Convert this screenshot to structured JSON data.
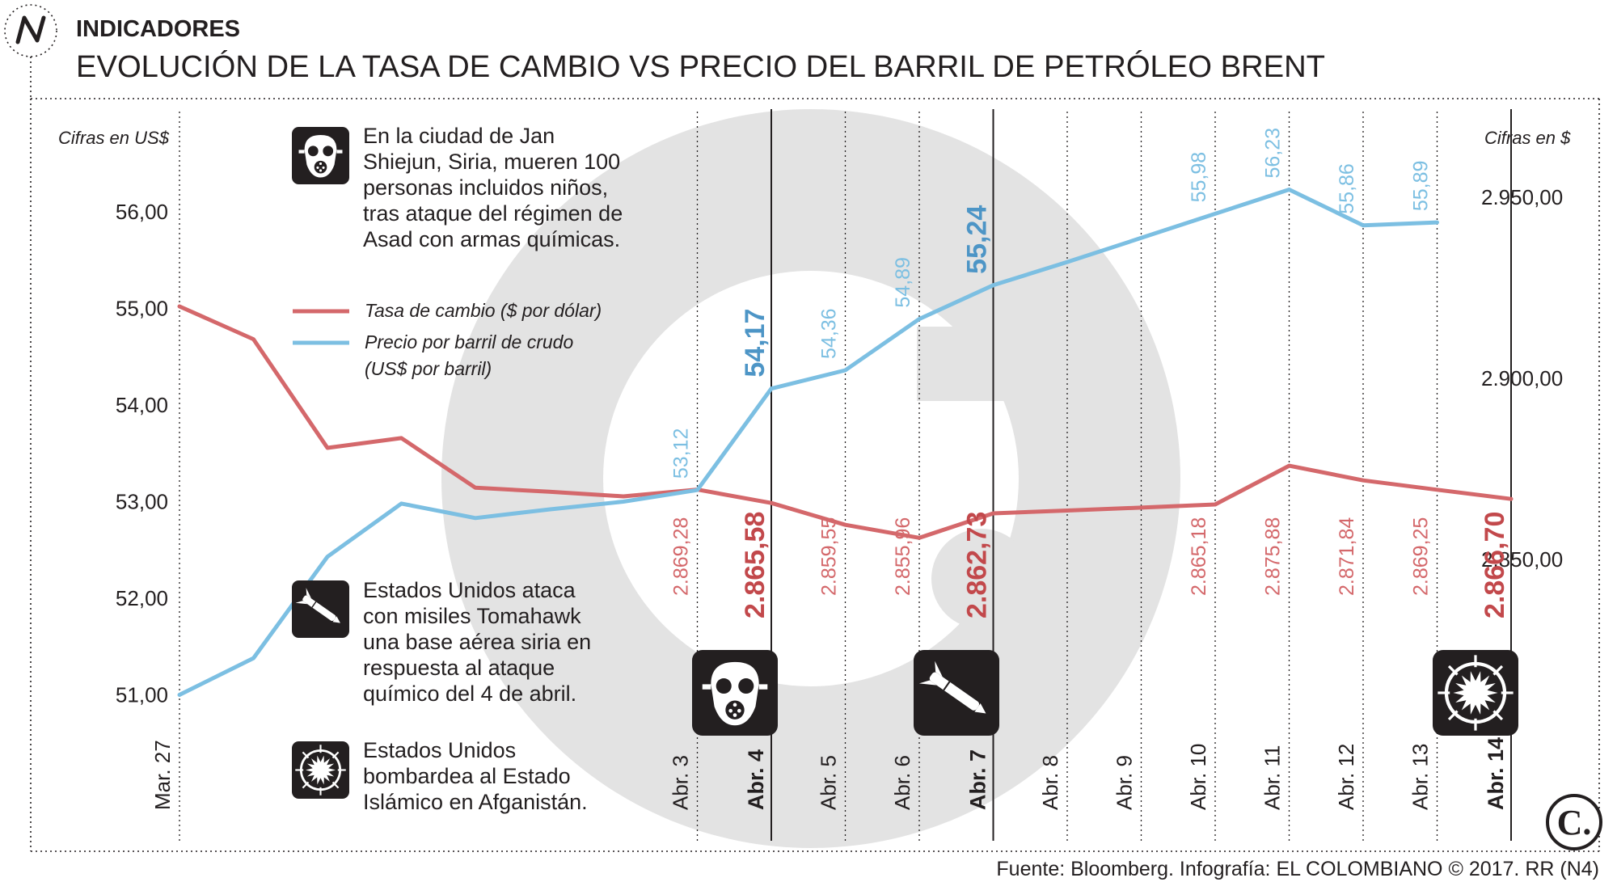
{
  "header": {
    "section": "INDICADORES",
    "title": "EVOLUCIÓN DE LA TASA DE CAMBIO VS PRECIO DEL BARRIL DE PETRÓLEO BRENT"
  },
  "axes": {
    "left_unit": "Cifras en US$",
    "right_unit": "Cifras en $"
  },
  "legend": {
    "rate_label": "Tasa de cambio ($ por dólar)",
    "oil_label_line1": "Precio por barril de crudo",
    "oil_label_line2": "(US$ por barril)"
  },
  "notes": {
    "chemical": "En la ciudad de Jan Shiejun, Siria, mueren 100 personas incluidos niños, tras ataque del régimen de Asad con armas químicas.",
    "missiles": "Estados Unidos ataca con misiles Tomahawk una base aérea siria en respuesta al ataque químico del 4 de abril.",
    "bombing": "Estados Unidos bombardea al Estado Islámico en Afganistán."
  },
  "footer": {
    "source": "Fuente: Bloomberg. Infografía: EL COLOMBIANO © 2017. RR (N4)"
  },
  "colors": {
    "oil": "#7cbfe2",
    "oil_label": "#7cbfe2",
    "oil_bold": "#4d95c6",
    "rate": "#d4686b",
    "rate_bold": "#c2484b",
    "watermark": "#e3e3e3",
    "icon_bg": "#231f20"
  },
  "icons": {
    "chemical": "gas-mask-icon",
    "missile": "missile-icon",
    "bombing": "explosion-icon",
    "brand": "n4-logo",
    "publisher": "el-colombiano-logo"
  },
  "chart_data": {
    "type": "line",
    "categories": [
      "Mar. 27",
      "",
      "",
      "",
      "",
      "",
      "",
      "Abr. 3",
      "Abr. 4",
      "Abr. 5",
      "Abr. 6",
      "Abr. 7",
      "Abr. 8",
      "Abr. 9",
      "Abr. 10",
      "Abr. 11",
      "Abr. 12",
      "Abr. 13",
      "Abr. 14"
    ],
    "highlighted_categories": [
      "Abr. 4",
      "Abr. 7",
      "Abr. 14"
    ],
    "series": [
      {
        "name": "Precio por barril de crudo (US$ por barril)",
        "axis": "left",
        "values": [
          51.0,
          51.38,
          52.43,
          52.98,
          52.83,
          52.92,
          53.0,
          53.12,
          54.17,
          54.36,
          54.89,
          55.24,
          55.48,
          55.73,
          55.98,
          56.23,
          55.86,
          55.89,
          null
        ],
        "labels": [
          null,
          null,
          null,
          null,
          null,
          null,
          null,
          "53,12",
          "54,17",
          "54,36",
          "54,89",
          "55,24",
          null,
          null,
          "55,98",
          "56,23",
          "55,86",
          "55,89",
          null
        ],
        "bold_labels": [
          "54,17",
          "55,24"
        ]
      },
      {
        "name": "Tasa de cambio ($ por dólar)",
        "axis": "right",
        "values": [
          2919.87,
          2910.8,
          2880.8,
          2883.5,
          2869.8,
          2868.7,
          2867.4,
          2869.28,
          2865.58,
          2859.55,
          2855.96,
          2862.73,
          2863.5,
          2864.3,
          2865.18,
          2875.88,
          2871.84,
          2869.25,
          2866.7
        ],
        "labels": [
          null,
          null,
          null,
          null,
          null,
          null,
          null,
          "2.869,28",
          "2.865,58",
          "2.859,55",
          "2.855,96",
          "2.862,73",
          null,
          null,
          "2.865,18",
          "2.875,88",
          "2.871,84",
          "2.869,25",
          "2.866,70"
        ],
        "bold_labels": [
          "2.865,58",
          "2.862,73",
          "2.866,70"
        ]
      }
    ],
    "left_axis": {
      "ylim": [
        51.0,
        56.0
      ],
      "ticks": [
        "51,00",
        "52,00",
        "53,00",
        "54,00",
        "55,00",
        "56,00"
      ]
    },
    "right_axis": {
      "ylim": [
        2850.0,
        2950.0
      ],
      "ticks": [
        "2.850,00",
        "2.900,00",
        "2.950,00"
      ]
    },
    "grid": "vertical-dotted",
    "legend_position": "top-left"
  }
}
